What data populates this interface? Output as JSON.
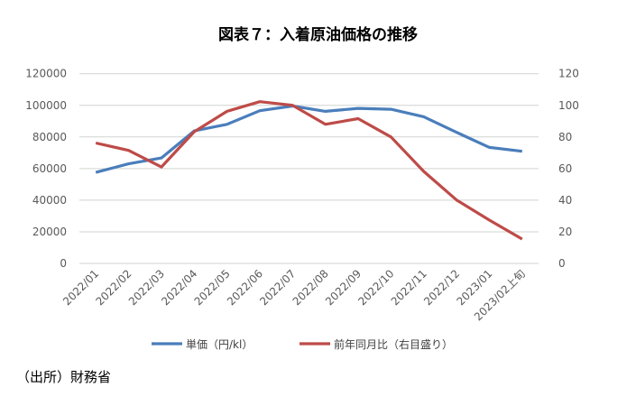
{
  "chart_data": {
    "type": "line",
    "title": "図表７：入着原油価格の推移",
    "categories": [
      "2022/01",
      "2022/02",
      "2022/03",
      "2022/04",
      "2022/05",
      "2022/06",
      "2022/07",
      "2022/08",
      "2022/09",
      "2022/10",
      "2022/11",
      "2022/12",
      "2023/01",
      "2023/02上旬"
    ],
    "series": [
      {
        "name": "単価（円/kl）",
        "axis": "left",
        "color": "#4A7EBB",
        "values": [
          57600,
          63000,
          66700,
          83800,
          88000,
          96600,
          99600,
          96200,
          98100,
          97500,
          92800,
          82900,
          73400,
          70900
        ]
      },
      {
        "name": "前年同月比（右目盛り）",
        "axis": "right",
        "color": "#BE4B48",
        "values": [
          76.2,
          71.5,
          61,
          83.3,
          96.2,
          102.3,
          100,
          88,
          91.6,
          80,
          58.2,
          40.1,
          27.4,
          15.4
        ]
      }
    ],
    "yleft": {
      "lim": [
        0,
        120000
      ],
      "ticks": [
        "0",
        "20000",
        "40000",
        "60000",
        "80000",
        "100000",
        "120000"
      ]
    },
    "yright": {
      "lim": [
        0,
        120
      ],
      "ticks": [
        "0",
        "20",
        "40",
        "60",
        "80",
        "100",
        "120"
      ]
    },
    "grid": true,
    "legend": "bottom"
  },
  "source": "（出所）財務省"
}
